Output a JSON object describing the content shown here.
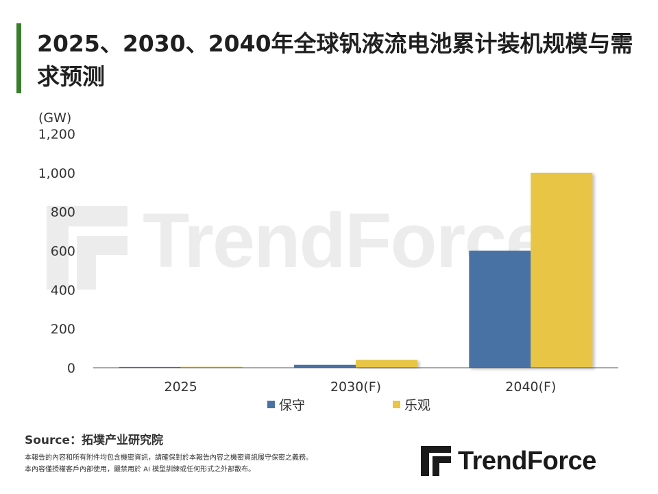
{
  "title": "2025、2030、2040年全球钒液流电池累计装机规模与需求预测",
  "watermark": "TrendForce",
  "chart_data": {
    "type": "bar",
    "unit_label": "(GW)",
    "categories": [
      "2025",
      "2030(F)",
      "2040(F)"
    ],
    "series": [
      {
        "name": "保守",
        "values": [
          4,
          15,
          600
        ],
        "color": "#4a72a4"
      },
      {
        "name": "乐观",
        "values": [
          5,
          40,
          1000
        ],
        "color": "#e8c545"
      }
    ],
    "yticks": [
      "0",
      "200",
      "400",
      "600",
      "800",
      "1,000",
      "1,200"
    ],
    "ylim": [
      0,
      1200
    ],
    "grid": false,
    "legend_position": "bottom"
  },
  "footer": {
    "source": "Source：拓墣产业研究院",
    "note_line1": "本報告的內容和所有附件均包含機密資訊，請確保對於本報告內容之機密資訊履守保密之義務。",
    "note_line2": "本內容僅授權客戶內部使用，嚴禁用於 AI 模型訓練或任何形式之外部散布。",
    "logo_text": "TrendForce"
  },
  "colors": {
    "accent": "#3a7d2c",
    "logo_green": "#3a7d2c"
  },
  "icons": {
    "logo": "trendforce-logo-icon"
  }
}
